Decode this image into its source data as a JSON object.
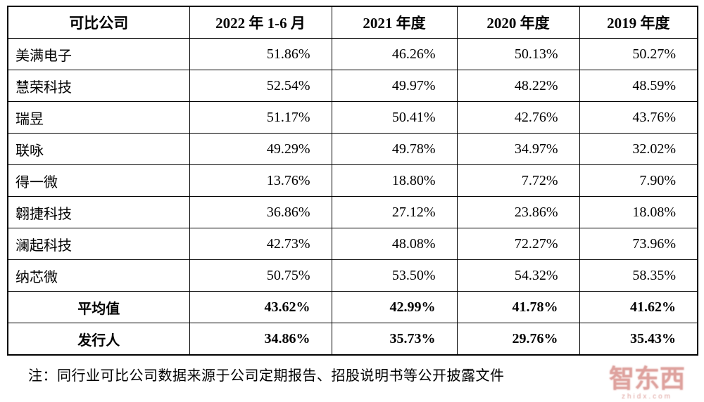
{
  "table": {
    "headers": [
      "可比公司",
      "2022 年 1-6 月",
      "2021 年度",
      "2020 年度",
      "2019 年度"
    ],
    "rows": [
      {
        "name": "美满电子",
        "values": [
          "51.86%",
          "46.26%",
          "50.13%",
          "50.27%"
        ],
        "bold": false
      },
      {
        "name": "慧荣科技",
        "values": [
          "52.54%",
          "49.97%",
          "48.22%",
          "48.59%"
        ],
        "bold": false
      },
      {
        "name": "瑞昱",
        "values": [
          "51.17%",
          "50.41%",
          "42.76%",
          "43.76%"
        ],
        "bold": false
      },
      {
        "name": "联咏",
        "values": [
          "49.29%",
          "49.78%",
          "34.97%",
          "32.02%"
        ],
        "bold": false
      },
      {
        "name": "得一微",
        "values": [
          "13.76%",
          "18.80%",
          "7.72%",
          "7.90%"
        ],
        "bold": false
      },
      {
        "name": "翱捷科技",
        "values": [
          "36.86%",
          "27.12%",
          "23.86%",
          "18.08%"
        ],
        "bold": false
      },
      {
        "name": "澜起科技",
        "values": [
          "42.73%",
          "48.08%",
          "72.27%",
          "73.96%"
        ],
        "bold": false
      },
      {
        "name": "纳芯微",
        "values": [
          "50.75%",
          "53.50%",
          "54.32%",
          "58.35%"
        ],
        "bold": false
      },
      {
        "name": "平均值",
        "values": [
          "43.62%",
          "42.99%",
          "41.78%",
          "41.62%"
        ],
        "bold": true
      },
      {
        "name": "发行人",
        "values": [
          "34.86%",
          "35.73%",
          "29.76%",
          "35.43%"
        ],
        "bold": true
      }
    ]
  },
  "note": "注：同行业可比公司数据来源于公司定期报告、招股说明书等公开披露文件",
  "watermark": {
    "text": "智东西",
    "subtext": "zhidx.com"
  }
}
